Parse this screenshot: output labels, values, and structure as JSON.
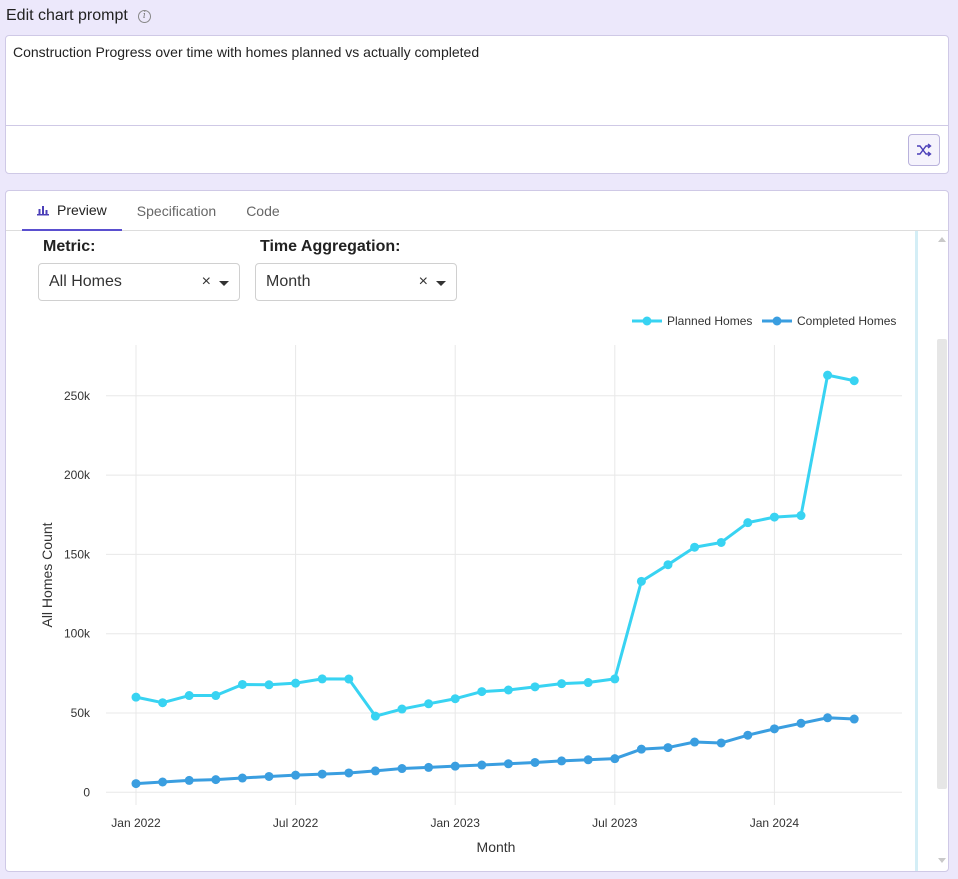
{
  "prompt_header": {
    "title": "Edit chart prompt",
    "info_icon": "info-icon"
  },
  "prompt": {
    "text": "Construction Progress over time with homes planned vs actually completed",
    "shuffle_icon": "shuffle-icon"
  },
  "tabs": [
    {
      "label": "Preview",
      "icon": "bar-chart-icon",
      "active": true
    },
    {
      "label": "Specification",
      "active": false
    },
    {
      "label": "Code",
      "active": false
    }
  ],
  "controls": {
    "metric": {
      "label": "Metric:",
      "value": "All Homes",
      "clear": "×"
    },
    "time_aggregation": {
      "label": "Time Aggregation:",
      "value": "Month",
      "clear": "×"
    }
  },
  "colors": {
    "planned": "#38d3f2",
    "completed": "#3a9ee0",
    "accent": "#5a4fcf"
  },
  "chart_data": {
    "type": "line",
    "xlabel": "Month",
    "ylabel": "All Homes Count",
    "x_ticks": [
      "Jan 2022",
      "Jul 2022",
      "Jan 2023",
      "Jul 2023",
      "Jan 2024"
    ],
    "y_ticks": [
      "0",
      "50k",
      "100k",
      "150k",
      "200k",
      "250k"
    ],
    "ylim": [
      -8000,
      282000
    ],
    "legend_position": "top-right",
    "grid": true,
    "x": [
      "2022-01",
      "2022-02",
      "2022-03",
      "2022-04",
      "2022-05",
      "2022-06",
      "2022-07",
      "2022-08",
      "2022-09",
      "2022-10",
      "2022-11",
      "2022-12",
      "2023-01",
      "2023-02",
      "2023-03",
      "2023-04",
      "2023-05",
      "2023-06",
      "2023-07",
      "2023-08",
      "2023-09",
      "2023-10",
      "2023-11",
      "2023-12",
      "2024-01",
      "2024-02",
      "2024-03",
      "2024-04"
    ],
    "series": [
      {
        "name": "Planned Homes",
        "values": [
          60000,
          56500,
          61000,
          61000,
          68000,
          67800,
          68800,
          71500,
          71400,
          48000,
          52500,
          55800,
          59000,
          63500,
          64500,
          66500,
          68500,
          69200,
          71500,
          133000,
          143500,
          154500,
          157500,
          170000,
          173500,
          174500,
          263000,
          259500
        ]
      },
      {
        "name": "Completed Homes",
        "values": [
          5500,
          6500,
          7500,
          8000,
          9000,
          10000,
          10800,
          11500,
          12200,
          13500,
          15000,
          15700,
          16500,
          17200,
          18000,
          18800,
          19800,
          20500,
          21200,
          27200,
          28200,
          31700,
          31100,
          36000,
          40000,
          43500,
          47000,
          46200
        ]
      }
    ]
  }
}
